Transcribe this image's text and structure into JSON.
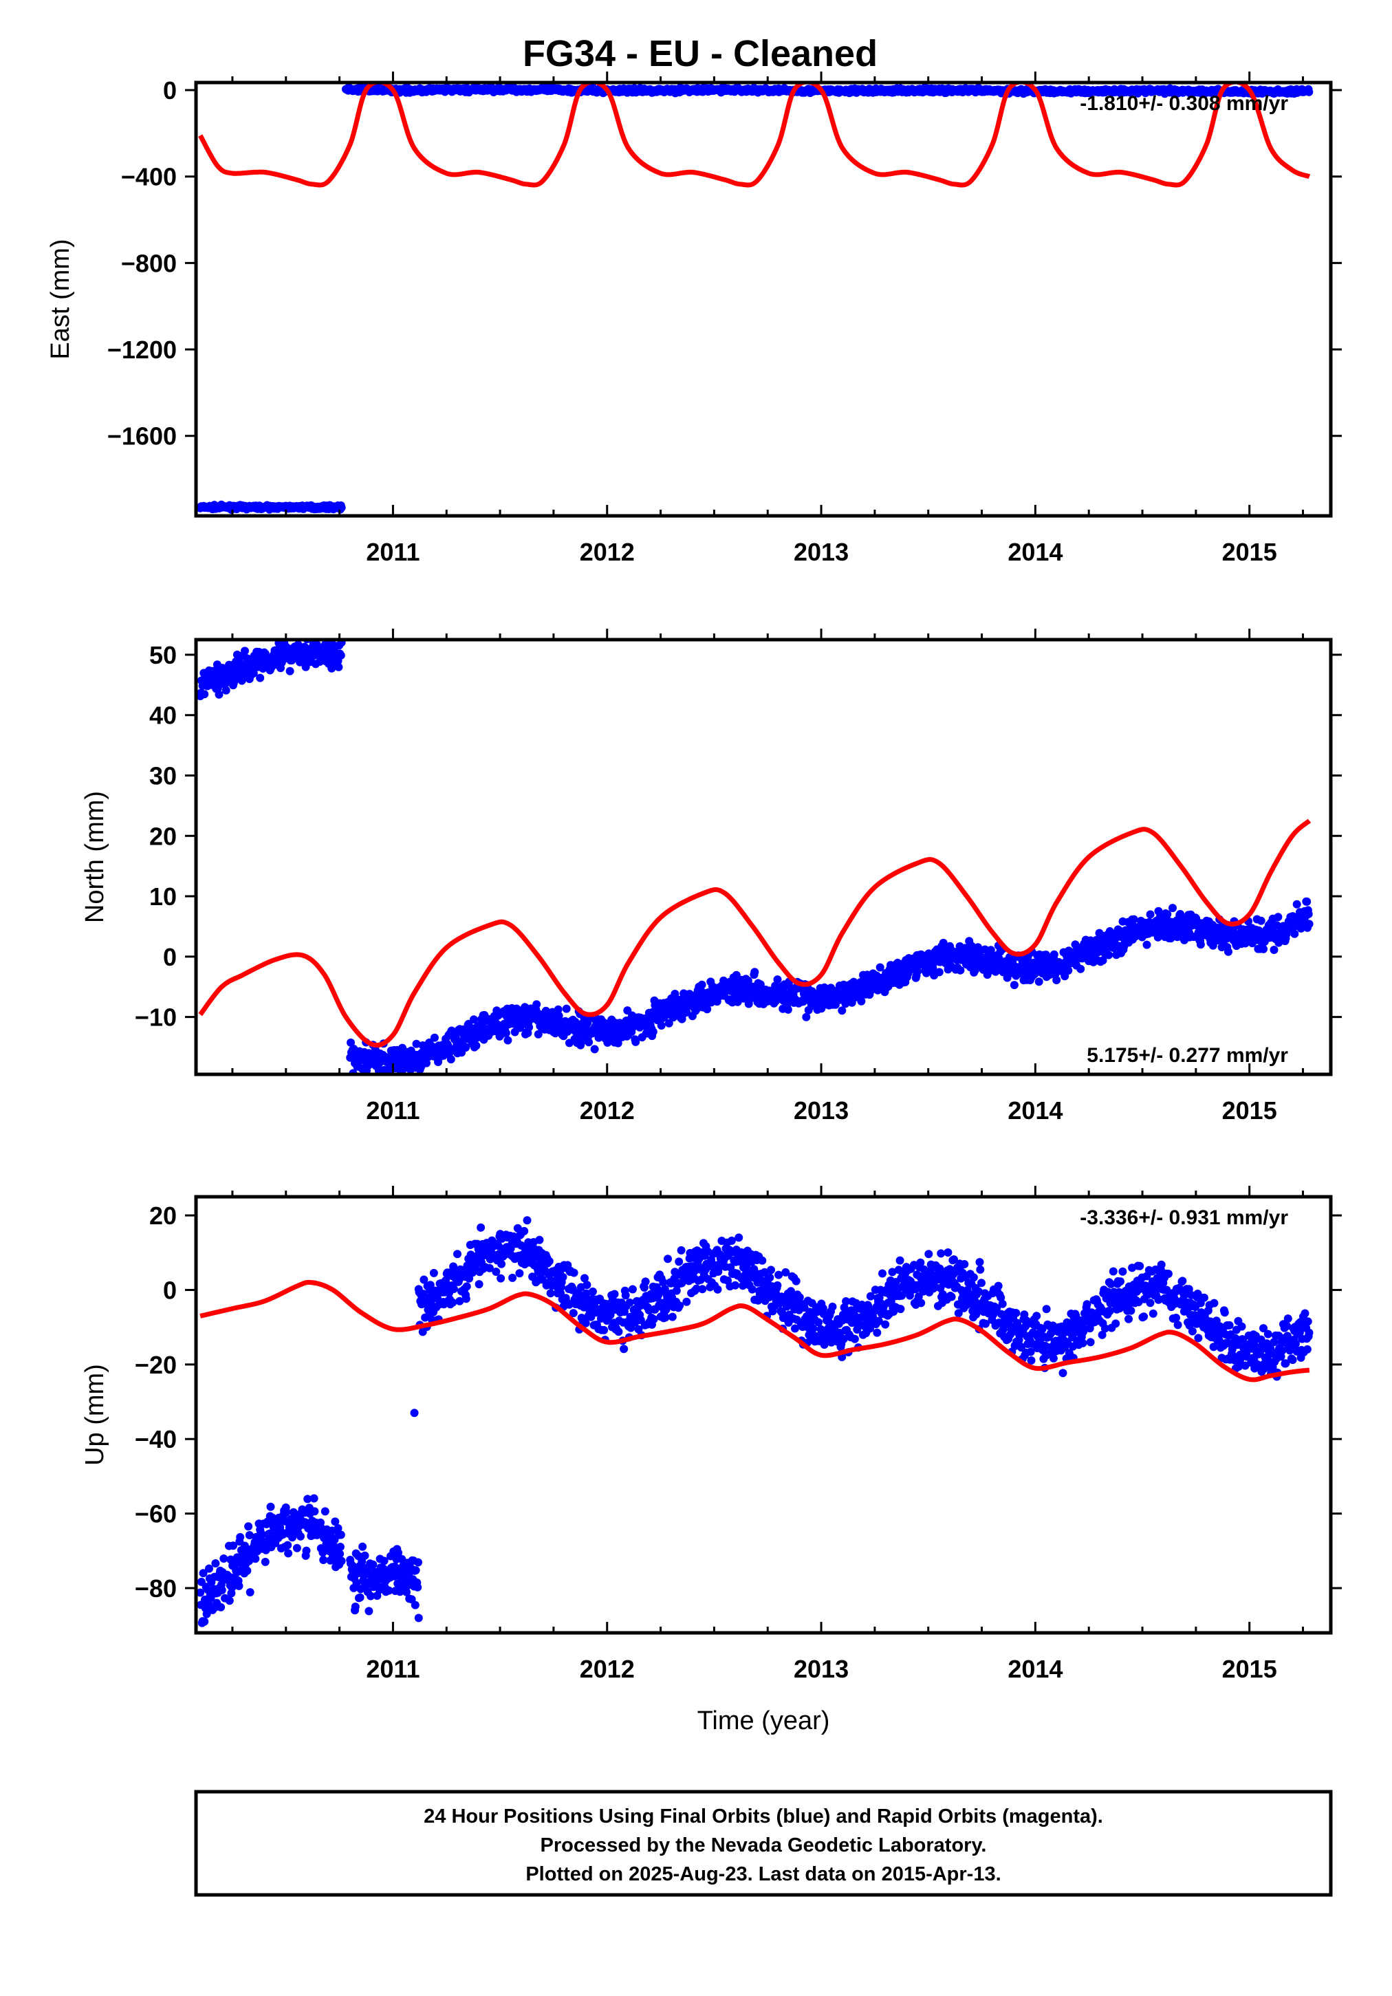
{
  "title": "FG34  - EU - Cleaned",
  "colors": {
    "observed": "#0000ff",
    "model": "#ff0000",
    "frame": "#000000"
  },
  "chart_data": [
    {
      "type": "scatter",
      "panel": "east",
      "ylabel": "East (mm)",
      "xlabel": "",
      "xlim": [
        2010.08,
        2015.38
      ],
      "ylim": [
        -1970,
        35
      ],
      "xticks": [
        2011,
        2012,
        2013,
        2014,
        2015
      ],
      "xtick_labels": [
        "2011",
        "2012",
        "2013",
        "2014",
        "2015"
      ],
      "yticks": [
        0,
        -400,
        -800,
        -1200,
        -1600
      ],
      "ytick_labels": [
        "0",
        "−400",
        "−800",
        "−1200",
        "−1600"
      ],
      "rate_label": "-1.810+/- 0.308 mm/yr",
      "rate_position": "top-right",
      "series": [
        {
          "role": "observed",
          "style": "points",
          "segments": [
            {
              "x_start": 2010.1,
              "x_end": 2010.76,
              "level": -1930,
              "amp": 0,
              "trend": 0,
              "noise": 4
            },
            {
              "x_start": 2010.78,
              "x_end": 2015.28,
              "level": 2,
              "amp": 2,
              "trend": -1.8,
              "noise": 5
            }
          ]
        },
        {
          "role": "model",
          "style": "line",
          "points": [
            [
              2010.1,
              -210
            ],
            [
              2010.18,
              -350
            ],
            [
              2010.25,
              -385
            ],
            [
              2010.4,
              -380
            ],
            [
              2010.55,
              -415
            ],
            [
              2010.62,
              -435
            ],
            [
              2010.7,
              -420
            ],
            [
              2010.8,
              -250
            ],
            [
              2010.88,
              10
            ],
            [
              2011.0,
              0
            ],
            [
              2011.1,
              -270
            ],
            [
              2011.25,
              -385
            ],
            [
              2011.4,
              -380
            ],
            [
              2011.55,
              -415
            ],
            [
              2011.62,
              -435
            ],
            [
              2011.7,
              -420
            ],
            [
              2011.8,
              -250
            ],
            [
              2011.88,
              10
            ],
            [
              2012.0,
              0
            ],
            [
              2012.1,
              -270
            ],
            [
              2012.25,
              -385
            ],
            [
              2012.4,
              -380
            ],
            [
              2012.55,
              -415
            ],
            [
              2012.62,
              -435
            ],
            [
              2012.7,
              -420
            ],
            [
              2012.8,
              -250
            ],
            [
              2012.88,
              10
            ],
            [
              2013.0,
              0
            ],
            [
              2013.1,
              -270
            ],
            [
              2013.25,
              -385
            ],
            [
              2013.4,
              -380
            ],
            [
              2013.55,
              -415
            ],
            [
              2013.62,
              -435
            ],
            [
              2013.7,
              -420
            ],
            [
              2013.8,
              -250
            ],
            [
              2013.88,
              10
            ],
            [
              2014.0,
              0
            ],
            [
              2014.1,
              -270
            ],
            [
              2014.25,
              -385
            ],
            [
              2014.4,
              -380
            ],
            [
              2014.55,
              -415
            ],
            [
              2014.62,
              -435
            ],
            [
              2014.7,
              -420
            ],
            [
              2014.8,
              -250
            ],
            [
              2014.88,
              10
            ],
            [
              2015.0,
              0
            ],
            [
              2015.1,
              -270
            ],
            [
              2015.2,
              -370
            ],
            [
              2015.28,
              -400
            ]
          ]
        }
      ]
    },
    {
      "type": "scatter",
      "panel": "north",
      "ylabel": "North (mm)",
      "xlabel": "",
      "xlim": [
        2010.08,
        2015.38
      ],
      "ylim": [
        -19.5,
        52.5
      ],
      "xticks": [
        2011,
        2012,
        2013,
        2014,
        2015
      ],
      "xtick_labels": [
        "2011",
        "2012",
        "2013",
        "2014",
        "2015"
      ],
      "yticks": [
        -10,
        0,
        10,
        20,
        30,
        40,
        50
      ],
      "ytick_labels": [
        "−10",
        "0",
        "10",
        "20",
        "30",
        "40",
        "50"
      ],
      "rate_label": "5.175+/- 0.277 mm/yr",
      "rate_position": "bottom-right",
      "series": [
        {
          "role": "observed",
          "style": "points",
          "segments": [
            {
              "x_start": 2010.1,
              "x_end": 2010.76,
              "level": 47,
              "amp": 1.8,
              "trend": 3.5,
              "noise": 1.2
            },
            {
              "x_start": 2010.8,
              "x_end": 2015.28,
              "level": -16.5,
              "amp": 2.0,
              "trend": 5.18,
              "noise": 1.2
            }
          ]
        },
        {
          "role": "model",
          "style": "line",
          "points": [
            [
              2010.1,
              -9.6
            ],
            [
              2010.2,
              -5
            ],
            [
              2010.3,
              -3
            ],
            [
              2010.45,
              -0.5
            ],
            [
              2010.58,
              0.2
            ],
            [
              2010.68,
              -3
            ],
            [
              2010.78,
              -10
            ],
            [
              2010.9,
              -14.5
            ],
            [
              2011.0,
              -13
            ],
            [
              2011.1,
              -6
            ],
            [
              2011.25,
              1.5
            ],
            [
              2011.45,
              5.2
            ],
            [
              2011.55,
              5.2
            ],
            [
              2011.68,
              0
            ],
            [
              2011.8,
              -6
            ],
            [
              2011.9,
              -9.5
            ],
            [
              2012.0,
              -8
            ],
            [
              2012.1,
              -1
            ],
            [
              2012.25,
              6.5
            ],
            [
              2012.45,
              10.5
            ],
            [
              2012.55,
              10.5
            ],
            [
              2012.68,
              5
            ],
            [
              2012.8,
              -1
            ],
            [
              2012.9,
              -4.5
            ],
            [
              2013.0,
              -3
            ],
            [
              2013.1,
              4
            ],
            [
              2013.25,
              11.5
            ],
            [
              2013.45,
              15.5
            ],
            [
              2013.55,
              15.5
            ],
            [
              2013.68,
              10
            ],
            [
              2013.8,
              4
            ],
            [
              2013.9,
              0.5
            ],
            [
              2014.0,
              2
            ],
            [
              2014.1,
              9
            ],
            [
              2014.25,
              16.5
            ],
            [
              2014.45,
              20.5
            ],
            [
              2014.55,
              20.5
            ],
            [
              2014.68,
              15
            ],
            [
              2014.8,
              9
            ],
            [
              2014.9,
              5.5
            ],
            [
              2015.0,
              7
            ],
            [
              2015.1,
              14
            ],
            [
              2015.2,
              20
            ],
            [
              2015.28,
              22.5
            ]
          ]
        }
      ]
    },
    {
      "type": "scatter",
      "panel": "up",
      "ylabel": "Up (mm)",
      "xlabel": "Time (year)",
      "xlim": [
        2010.08,
        2015.38
      ],
      "ylim": [
        -92,
        25
      ],
      "xticks": [
        2011,
        2012,
        2013,
        2014,
        2015
      ],
      "xtick_labels": [
        "2011",
        "2012",
        "2013",
        "2014",
        "2015"
      ],
      "yticks": [
        20,
        0,
        -20,
        -40,
        -60,
        -80
      ],
      "ytick_labels": [
        "20",
        "0",
        "−20",
        "−40",
        "−60",
        "−80"
      ],
      "rate_label": "-3.336+/- 0.931 mm/yr",
      "rate_position": "top-right",
      "series": [
        {
          "role": "observed",
          "style": "points",
          "segments": [
            {
              "x_start": 2010.1,
              "x_end": 2010.76,
              "level": -73,
              "amp": 10,
              "trend": 0,
              "noise": 3.5
            },
            {
              "x_start": 2010.8,
              "x_end": 2011.12,
              "level": -77,
              "amp": 0,
              "trend": 0,
              "noise": 3.5
            },
            {
              "x_start": 2011.12,
              "x_end": 2015.28,
              "level": 4,
              "amp": 8,
              "trend": -3.3,
              "noise": 3.5
            }
          ],
          "extra_points": [
            [
              2011.1,
              -33
            ],
            [
              2011.12,
              -88
            ]
          ]
        },
        {
          "role": "model",
          "style": "line",
          "points": [
            [
              2010.1,
              -7
            ],
            [
              2010.25,
              -5
            ],
            [
              2010.4,
              -3
            ],
            [
              2010.55,
              1
            ],
            [
              2010.62,
              2
            ],
            [
              2010.72,
              0
            ],
            [
              2010.85,
              -6
            ],
            [
              2011.0,
              -10.5
            ],
            [
              2011.15,
              -9.5
            ],
            [
              2011.3,
              -7.5
            ],
            [
              2011.45,
              -5
            ],
            [
              2011.58,
              -1.5
            ],
            [
              2011.65,
              -1.3
            ],
            [
              2011.75,
              -4
            ],
            [
              2011.88,
              -10
            ],
            [
              2012.0,
              -14
            ],
            [
              2012.15,
              -12.5
            ],
            [
              2012.3,
              -11
            ],
            [
              2012.45,
              -9
            ],
            [
              2012.58,
              -5
            ],
            [
              2012.65,
              -4.5
            ],
            [
              2012.75,
              -8
            ],
            [
              2012.88,
              -13
            ],
            [
              2013.0,
              -17.5
            ],
            [
              2013.15,
              -16
            ],
            [
              2013.3,
              -14.5
            ],
            [
              2013.45,
              -12
            ],
            [
              2013.58,
              -8.5
            ],
            [
              2013.65,
              -8
            ],
            [
              2013.75,
              -11
            ],
            [
              2013.88,
              -17
            ],
            [
              2014.0,
              -21
            ],
            [
              2014.15,
              -19.5
            ],
            [
              2014.3,
              -18
            ],
            [
              2014.45,
              -15.5
            ],
            [
              2014.58,
              -12
            ],
            [
              2014.65,
              -11.5
            ],
            [
              2014.75,
              -14.5
            ],
            [
              2014.88,
              -20.5
            ],
            [
              2015.0,
              -24
            ],
            [
              2015.1,
              -23
            ],
            [
              2015.2,
              -22
            ],
            [
              2015.28,
              -21.5
            ]
          ]
        }
      ]
    }
  ],
  "footer": {
    "line1": "24 Hour Positions Using Final Orbits (blue) and Rapid Orbits (magenta).",
    "line2": "Processed by the Nevada Geodetic Laboratory.",
    "line3": "Plotted on 2025-Aug-23. Last data on 2015-Apr-13."
  }
}
